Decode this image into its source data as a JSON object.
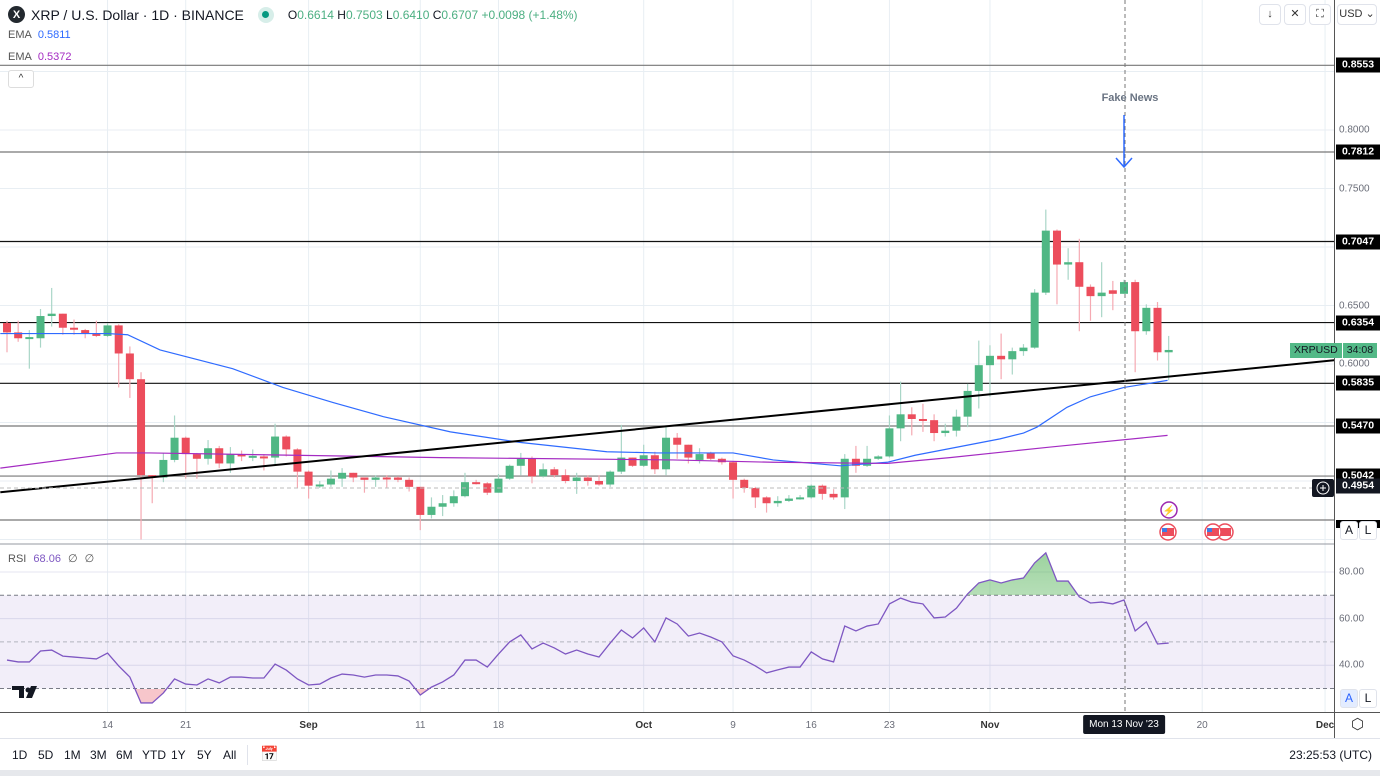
{
  "header": {
    "symbol_logo": "X",
    "title": "XRP / U.S. Dollar · 1D · BINANCE",
    "ohlc": {
      "o_label": "O",
      "o": "0.6614",
      "h_label": "H",
      "h": "0.7503",
      "l_label": "L",
      "l": "0.6410",
      "c_label": "C",
      "c": "0.6707",
      "change": "+0.0098 (+1.48%)"
    },
    "ema1": {
      "label": "EMA",
      "value": "0.5811"
    },
    "ema2": {
      "label": "EMA",
      "value": "0.5372"
    },
    "collapse": "^"
  },
  "toolbar": {
    "download": "↓",
    "collapse": "✕",
    "fullscreen": "⛶",
    "currency": "USD ⌄"
  },
  "colors": {
    "up": "#4fb784",
    "down": "#ec4d5c",
    "ema1": "#2f6bff",
    "ema2": "#a42bc2",
    "rsi": "#7e57c2",
    "trend": "#000000"
  },
  "price_axis": {
    "ticks": [
      "0.8000",
      "0.7500",
      "0.6500",
      "0.6000"
    ],
    "tick_values": [
      0.8,
      0.75,
      0.65,
      0.6
    ],
    "levels": [
      {
        "label": "0.8553",
        "value": 0.8553
      },
      {
        "label": "0.7812",
        "value": 0.7812
      },
      {
        "label": "0.7047",
        "value": 0.7047
      },
      {
        "label": "0.6354",
        "value": 0.6354
      },
      {
        "label": "0.5835",
        "value": 0.5835
      },
      {
        "label": "0.5470",
        "value": 0.547
      },
      {
        "label": "0.5042",
        "value": 0.5042
      }
    ],
    "crosshair": {
      "label": "0.4954",
      "value": 0.4954
    },
    "last": {
      "symbol": "XRPUSD",
      "countdown": "34:08"
    },
    "a_btn": "A",
    "l_btn": "L"
  },
  "annotation": {
    "text": "Fake News"
  },
  "rsi": {
    "label": "RSI",
    "value": "68.06",
    "extra1": "∅",
    "extra2": "∅",
    "ticks": [
      "80.00",
      "60.00",
      "40.00"
    ],
    "tick_values": [
      80,
      60,
      40
    ],
    "a_btn": "A",
    "l_btn": "L"
  },
  "time_axis": {
    "ticks": [
      {
        "label": "14",
        "i": 9
      },
      {
        "label": "21",
        "i": 16
      },
      {
        "label": "Sep",
        "i": 27
      },
      {
        "label": "11",
        "i": 37
      },
      {
        "label": "18",
        "i": 44
      },
      {
        "label": "Oct",
        "i": 57
      },
      {
        "label": "9",
        "i": 65
      },
      {
        "label": "16",
        "i": 72
      },
      {
        "label": "23",
        "i": 79
      },
      {
        "label": "Nov",
        "i": 88
      },
      {
        "label": "20",
        "i": 107
      },
      {
        "label": "Dec",
        "i": 118
      }
    ],
    "crosshair": "Mon 13 Nov '23",
    "crosshair_index": 100
  },
  "bottom": {
    "ranges": [
      "1D",
      "5D",
      "1M",
      "3M",
      "6M",
      "YTD",
      "1Y",
      "5Y",
      "All"
    ],
    "clock": "23:25:53 (UTC)"
  },
  "chart_data": {
    "type": "candlestick",
    "candles": [
      [
        0.635,
        0.637,
        0.61,
        0.627
      ],
      [
        0.627,
        0.637,
        0.619,
        0.622
      ],
      [
        0.622,
        0.629,
        0.596,
        0.623
      ],
      [
        0.622,
        0.647,
        0.614,
        0.641
      ],
      [
        0.641,
        0.665,
        0.632,
        0.643
      ],
      [
        0.643,
        0.643,
        0.625,
        0.631
      ],
      [
        0.631,
        0.638,
        0.625,
        0.63
      ],
      [
        0.629,
        0.63,
        0.622,
        0.626
      ],
      [
        0.626,
        0.637,
        0.623,
        0.624
      ],
      [
        0.624,
        0.635,
        0.623,
        0.633
      ],
      [
        0.633,
        0.634,
        0.58,
        0.609
      ],
      [
        0.609,
        0.615,
        0.571,
        0.587
      ],
      [
        0.587,
        0.593,
        0.45,
        0.505
      ],
      [
        0.505,
        0.505,
        0.481,
        0.503
      ],
      [
        0.503,
        0.524,
        0.499,
        0.518
      ],
      [
        0.518,
        0.556,
        0.516,
        0.537
      ],
      [
        0.537,
        0.538,
        0.502,
        0.523
      ],
      [
        0.523,
        0.524,
        0.502,
        0.519
      ],
      [
        0.519,
        0.535,
        0.514,
        0.528
      ],
      [
        0.528,
        0.53,
        0.511,
        0.515
      ],
      [
        0.515,
        0.529,
        0.507,
        0.523
      ],
      [
        0.523,
        0.526,
        0.517,
        0.521
      ],
      [
        0.521,
        0.527,
        0.517,
        0.5215
      ],
      [
        0.521,
        0.523,
        0.509,
        0.5205
      ],
      [
        0.52,
        0.549,
        0.513,
        0.538
      ],
      [
        0.538,
        0.539,
        0.521,
        0.527
      ],
      [
        0.527,
        0.528,
        0.494,
        0.508
      ],
      [
        0.508,
        0.509,
        0.485,
        0.496
      ],
      [
        0.496,
        0.5,
        0.494,
        0.497
      ],
      [
        0.497,
        0.509,
        0.495,
        0.502
      ],
      [
        0.502,
        0.511,
        0.495,
        0.507
      ],
      [
        0.507,
        0.507,
        0.499,
        0.503
      ],
      [
        0.503,
        0.503,
        0.49,
        0.501
      ],
      [
        0.501,
        0.505,
        0.495,
        0.503
      ],
      [
        0.503,
        0.505,
        0.494,
        0.502
      ],
      [
        0.503,
        0.504,
        0.499,
        0.501
      ],
      [
        0.501,
        0.503,
        0.491,
        0.495
      ],
      [
        0.495,
        0.495,
        0.458,
        0.471
      ],
      [
        0.471,
        0.486,
        0.468,
        0.478
      ],
      [
        0.478,
        0.488,
        0.47,
        0.481
      ],
      [
        0.481,
        0.492,
        0.478,
        0.487
      ],
      [
        0.487,
        0.507,
        0.486,
        0.499
      ],
      [
        0.499,
        0.501,
        0.497,
        0.498
      ],
      [
        0.498,
        0.499,
        0.488,
        0.49
      ],
      [
        0.49,
        0.506,
        0.49,
        0.502
      ],
      [
        0.502,
        0.514,
        0.501,
        0.513
      ],
      [
        0.513,
        0.524,
        0.505,
        0.519
      ],
      [
        0.519,
        0.521,
        0.498,
        0.504
      ],
      [
        0.504,
        0.515,
        0.503,
        0.51
      ],
      [
        0.51,
        0.512,
        0.503,
        0.505
      ],
      [
        0.505,
        0.51,
        0.498,
        0.5
      ],
      [
        0.5,
        0.507,
        0.489,
        0.503
      ],
      [
        0.503,
        0.505,
        0.496,
        0.5
      ],
      [
        0.5,
        0.505,
        0.496,
        0.497
      ],
      [
        0.497,
        0.509,
        0.495,
        0.508
      ],
      [
        0.508,
        0.548,
        0.506,
        0.52
      ],
      [
        0.52,
        0.52,
        0.512,
        0.513
      ],
      [
        0.513,
        0.531,
        0.512,
        0.522
      ],
      [
        0.522,
        0.525,
        0.506,
        0.51
      ],
      [
        0.51,
        0.546,
        0.505,
        0.537
      ],
      [
        0.537,
        0.541,
        0.519,
        0.531
      ],
      [
        0.531,
        0.531,
        0.515,
        0.52
      ],
      [
        0.518,
        0.528,
        0.515,
        0.523
      ],
      [
        0.524,
        0.525,
        0.518,
        0.519
      ],
      [
        0.519,
        0.52,
        0.514,
        0.516
      ],
      [
        0.516,
        0.517,
        0.485,
        0.501
      ],
      [
        0.501,
        0.502,
        0.49,
        0.494
      ],
      [
        0.494,
        0.495,
        0.477,
        0.486
      ],
      [
        0.486,
        0.487,
        0.473,
        0.481
      ],
      [
        0.481,
        0.487,
        0.478,
        0.483
      ],
      [
        0.483,
        0.488,
        0.482,
        0.485
      ],
      [
        0.485,
        0.488,
        0.484,
        0.486
      ],
      [
        0.486,
        0.497,
        0.485,
        0.496
      ],
      [
        0.496,
        0.497,
        0.484,
        0.489
      ],
      [
        0.489,
        0.493,
        0.484,
        0.486
      ],
      [
        0.486,
        0.523,
        0.476,
        0.519
      ],
      [
        0.519,
        0.53,
        0.507,
        0.513
      ],
      [
        0.513,
        0.53,
        0.512,
        0.519
      ],
      [
        0.519,
        0.522,
        0.518,
        0.521
      ],
      [
        0.521,
        0.556,
        0.52,
        0.545
      ],
      [
        0.545,
        0.585,
        0.534,
        0.557
      ],
      [
        0.557,
        0.563,
        0.539,
        0.553
      ],
      [
        0.553,
        0.566,
        0.542,
        0.552
      ],
      [
        0.552,
        0.557,
        0.534,
        0.541
      ],
      [
        0.541,
        0.549,
        0.538,
        0.543
      ],
      [
        0.543,
        0.561,
        0.538,
        0.555
      ],
      [
        0.555,
        0.583,
        0.546,
        0.577
      ],
      [
        0.577,
        0.62,
        0.562,
        0.599
      ],
      [
        0.599,
        0.616,
        0.572,
        0.607
      ],
      [
        0.607,
        0.626,
        0.587,
        0.604
      ],
      [
        0.604,
        0.614,
        0.591,
        0.611
      ],
      [
        0.611,
        0.617,
        0.607,
        0.614
      ],
      [
        0.614,
        0.664,
        0.613,
        0.661
      ],
      [
        0.661,
        0.732,
        0.659,
        0.714
      ],
      [
        0.714,
        0.715,
        0.651,
        0.685
      ],
      [
        0.685,
        0.699,
        0.672,
        0.687
      ],
      [
        0.687,
        0.707,
        0.628,
        0.666
      ],
      [
        0.666,
        0.668,
        0.637,
        0.658
      ],
      [
        0.658,
        0.687,
        0.64,
        0.661
      ],
      [
        0.663,
        0.671,
        0.646,
        0.66
      ],
      [
        0.66,
        0.672,
        0.66,
        0.67
      ],
      [
        0.67,
        0.672,
        0.593,
        0.628
      ],
      [
        0.628,
        0.651,
        0.625,
        0.648
      ],
      [
        0.648,
        0.653,
        0.603,
        0.61
      ],
      [
        0.61,
        0.624,
        0.586,
        0.612
      ]
    ],
    "ema_fast": [
      [
        -0.6,
        0.626
      ],
      [
        9,
        0.626
      ],
      [
        10.8,
        0.625
      ],
      [
        13.7,
        0.612
      ],
      [
        20.2,
        0.596
      ],
      [
        24.7,
        0.58
      ],
      [
        29.2,
        0.567
      ],
      [
        33.7,
        0.555
      ],
      [
        39.7,
        0.542
      ],
      [
        45.9,
        0.533
      ],
      [
        53.7,
        0.525
      ],
      [
        58.2,
        0.524
      ],
      [
        65,
        0.524
      ],
      [
        68.6,
        0.518
      ],
      [
        74.6,
        0.513
      ],
      [
        78.8,
        0.516
      ],
      [
        81.3,
        0.522
      ],
      [
        88.9,
        0.536
      ],
      [
        91,
        0.541
      ],
      [
        92.2,
        0.546
      ],
      [
        94.9,
        0.563
      ],
      [
        97,
        0.572
      ],
      [
        100,
        0.58
      ],
      [
        103.9,
        0.586
      ]
    ],
    "ema_slow": [
      [
        -0.6,
        0.511
      ],
      [
        9.8,
        0.524
      ],
      [
        12.8,
        0.524
      ],
      [
        38.8,
        0.52
      ],
      [
        59.6,
        0.518
      ],
      [
        68.6,
        0.516
      ],
      [
        78.8,
        0.515
      ],
      [
        84.4,
        0.52
      ],
      [
        93.4,
        0.529
      ],
      [
        103.9,
        0.539
      ]
    ],
    "trendline": [
      [
        -0.6,
        0.4904
      ],
      [
        118.9,
        0.6033
      ]
    ],
    "rsi": [
      42.2,
      41.4,
      41.4,
      46.1,
      46.5,
      43.9,
      43.5,
      43.1,
      42.7,
      45.2,
      39.7,
      34.9,
      23.8,
      23.8,
      28.1,
      34.1,
      31.9,
      31.5,
      34.1,
      32.4,
      34.9,
      34.9,
      34.5,
      34.5,
      40.5,
      37.9,
      34.1,
      31.5,
      31.9,
      34.5,
      36.2,
      35.8,
      34.9,
      35.8,
      35.8,
      35.4,
      33.2,
      27.2,
      30.6,
      32.8,
      35.8,
      42.2,
      42.2,
      39.2,
      44.8,
      50.0,
      53.0,
      47.0,
      49.5,
      47.4,
      44.8,
      46.5,
      44.8,
      43.5,
      49.5,
      55.1,
      51.7,
      56.0,
      50.0,
      60.3,
      57.7,
      52.5,
      53.8,
      52.1,
      50.0,
      44.0,
      42.2,
      39.7,
      36.7,
      38.0,
      39.2,
      39.2,
      45.7,
      42.7,
      41.4,
      56.8,
      54.7,
      56.8,
      57.7,
      66.3,
      68.8,
      67.1,
      66.3,
      60.3,
      60.7,
      64.5,
      70.6,
      75.3,
      76.6,
      75.3,
      76.6,
      77.4,
      83.9,
      88.2,
      76.1,
      76.1,
      69.3,
      66.7,
      67.1,
      66.3,
      68.0,
      54.7,
      58.6,
      49.1,
      49.5
    ],
    "price_range": [
      0.43,
      0.91
    ],
    "rsi_bands": [
      70,
      50,
      30
    ]
  }
}
